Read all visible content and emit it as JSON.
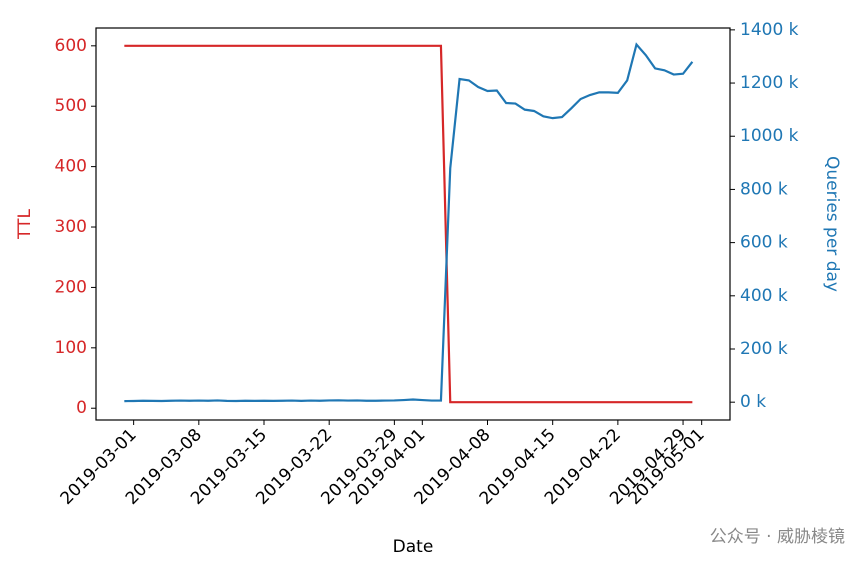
{
  "chart_data": {
    "type": "line",
    "x_label": "Date",
    "y_label": "TTL",
    "y2_label": "Queries per day",
    "watermark": "公众号 · 威胁棱镜",
    "x": [
      "2019-02-28",
      "2019-03-01",
      "2019-03-02",
      "2019-03-03",
      "2019-03-04",
      "2019-03-05",
      "2019-03-06",
      "2019-03-07",
      "2019-03-08",
      "2019-03-09",
      "2019-03-10",
      "2019-03-11",
      "2019-03-12",
      "2019-03-13",
      "2019-03-14",
      "2019-03-15",
      "2019-03-16",
      "2019-03-17",
      "2019-03-18",
      "2019-03-19",
      "2019-03-20",
      "2019-03-21",
      "2019-03-22",
      "2019-03-23",
      "2019-03-24",
      "2019-03-25",
      "2019-03-26",
      "2019-03-27",
      "2019-03-28",
      "2019-03-29",
      "2019-03-30",
      "2019-03-31",
      "2019-04-01",
      "2019-04-02",
      "2019-04-03",
      "2019-04-04",
      "2019-04-05",
      "2019-04-06",
      "2019-04-07",
      "2019-04-08",
      "2019-04-09",
      "2019-04-10",
      "2019-04-11",
      "2019-04-12",
      "2019-04-13",
      "2019-04-14",
      "2019-04-15",
      "2019-04-16",
      "2019-04-17",
      "2019-04-18",
      "2019-04-19",
      "2019-04-20",
      "2019-04-21",
      "2019-04-22",
      "2019-04-23",
      "2019-04-24",
      "2019-04-25",
      "2019-04-26",
      "2019-04-27",
      "2019-04-28",
      "2019-04-29",
      "2019-04-30"
    ],
    "series": [
      {
        "name": "TTL",
        "color": "#d62728",
        "axis": "y",
        "values": [
          600,
          600,
          600,
          600,
          600,
          600,
          600,
          600,
          600,
          600,
          600,
          600,
          600,
          600,
          600,
          600,
          600,
          600,
          600,
          600,
          600,
          600,
          600,
          600,
          600,
          600,
          600,
          600,
          600,
          600,
          600,
          600,
          600,
          600,
          600,
          10,
          10,
          10,
          10,
          10,
          10,
          10,
          10,
          10,
          10,
          10,
          10,
          10,
          10,
          10,
          10,
          10,
          10,
          10,
          10,
          10,
          10,
          10,
          10,
          10,
          10,
          10
        ]
      },
      {
        "name": "Queries per day",
        "color": "#1f77b4",
        "axis": "y2",
        "values": [
          4000,
          4500,
          5500,
          5000,
          4500,
          5500,
          6000,
          5500,
          6000,
          5500,
          6500,
          5000,
          4500,
          5500,
          5000,
          5500,
          5000,
          5500,
          6000,
          5000,
          6000,
          5500,
          6500,
          7000,
          6000,
          6500,
          5500,
          5500,
          6000,
          6500,
          8000,
          10000,
          8000,
          6000,
          6000,
          880000,
          1215000,
          1210000,
          1185000,
          1170000,
          1172000,
          1125000,
          1123000,
          1100000,
          1095000,
          1075000,
          1068000,
          1072000,
          1105000,
          1140000,
          1155000,
          1165000,
          1165000,
          1163000,
          1210000,
          1345000,
          1305000,
          1255000,
          1248000,
          1232000,
          1235000,
          1280000
        ]
      }
    ],
    "xlim": [
      "2019-02-24T23:00",
      "2019-05-04T01:00"
    ],
    "xticks": [
      "2019-03-01",
      "2019-03-08",
      "2019-03-15",
      "2019-03-22",
      "2019-03-29",
      "2019-04-01",
      "2019-04-08",
      "2019-04-15",
      "2019-04-22",
      "2019-04-29",
      "2019-05-01"
    ],
    "ylim": [
      -19.5,
      629.5
    ],
    "yticks": [
      0,
      100,
      200,
      300,
      400,
      500,
      600
    ],
    "y2lim": [
      -67000,
      1407000
    ],
    "y2ticks": [
      {
        "value": 0,
        "label": "0 k"
      },
      {
        "value": 200000,
        "label": "200 k"
      },
      {
        "value": 400000,
        "label": "400 k"
      },
      {
        "value": 600000,
        "label": "600 k"
      },
      {
        "value": 800000,
        "label": "800 k"
      },
      {
        "value": 1000000,
        "label": "1000 k"
      },
      {
        "value": 1200000,
        "label": "1200 k"
      },
      {
        "value": 1400000,
        "label": "1400 k"
      }
    ]
  }
}
